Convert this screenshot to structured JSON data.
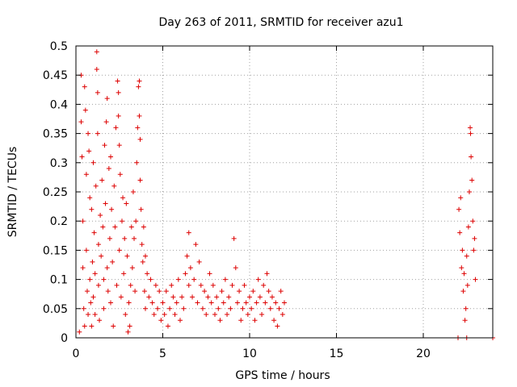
{
  "chart_data": {
    "type": "scatter",
    "title": "Day 263 of 2011, SRMTID for receiver azu1",
    "xlabel": "GPS time / hours",
    "ylabel": "SRMTID / TECUs",
    "xlim": [
      0,
      24
    ],
    "ylim": [
      0,
      0.5
    ],
    "x_ticks": [
      0,
      5,
      10,
      15,
      20
    ],
    "x_tick_labels": [
      "0",
      "5",
      "10",
      "15",
      "20"
    ],
    "y_ticks": [
      0,
      0.05,
      0.1,
      0.15,
      0.2,
      0.25,
      0.3,
      0.35,
      0.4,
      0.45,
      0.5
    ],
    "y_tick_labels": [
      "0",
      "0.05",
      "0.1",
      "0.15",
      "0.2",
      "0.25",
      "0.3",
      "0.35",
      "0.4",
      "0.45",
      "0.5"
    ],
    "grid": true,
    "marker": "+",
    "color": "#dd0000",
    "series": [
      {
        "name": "SRMTID",
        "points": [
          [
            0.2,
            0.01
          ],
          [
            0.3,
            0.45
          ],
          [
            0.3,
            0.37
          ],
          [
            0.35,
            0.31
          ],
          [
            0.4,
            0.2
          ],
          [
            0.4,
            0.12
          ],
          [
            0.45,
            0.05
          ],
          [
            0.5,
            0.02
          ],
          [
            0.5,
            0.43
          ],
          [
            0.55,
            0.39
          ],
          [
            0.6,
            0.28
          ],
          [
            0.6,
            0.15
          ],
          [
            0.65,
            0.08
          ],
          [
            0.7,
            0.04
          ],
          [
            0.7,
            0.35
          ],
          [
            0.75,
            0.32
          ],
          [
            0.8,
            0.24
          ],
          [
            0.8,
            0.1
          ],
          [
            0.85,
            0.06
          ],
          [
            0.9,
            0.02
          ],
          [
            0.9,
            0.22
          ],
          [
            0.95,
            0.13
          ],
          [
            1.0,
            0.07
          ],
          [
            1.0,
            0.3
          ],
          [
            1.05,
            0.18
          ],
          [
            1.1,
            0.11
          ],
          [
            1.1,
            0.04
          ],
          [
            1.15,
            0.26
          ],
          [
            1.2,
            0.49
          ],
          [
            1.2,
            0.46
          ],
          [
            1.25,
            0.42
          ],
          [
            1.25,
            0.35
          ],
          [
            1.3,
            0.16
          ],
          [
            1.3,
            0.09
          ],
          [
            1.35,
            0.03
          ],
          [
            1.4,
            0.21
          ],
          [
            1.45,
            0.14
          ],
          [
            1.5,
            0.27
          ],
          [
            1.55,
            0.19
          ],
          [
            1.6,
            0.1
          ],
          [
            1.6,
            0.05
          ],
          [
            1.65,
            0.33
          ],
          [
            1.7,
            0.23
          ],
          [
            1.75,
            0.37
          ],
          [
            1.8,
            0.41
          ],
          [
            1.8,
            0.12
          ],
          [
            1.85,
            0.08
          ],
          [
            1.9,
            0.29
          ],
          [
            1.95,
            0.17
          ],
          [
            2.0,
            0.06
          ],
          [
            2.0,
            0.31
          ],
          [
            2.05,
            0.22
          ],
          [
            2.1,
            0.13
          ],
          [
            2.15,
            0.02
          ],
          [
            2.2,
            0.26
          ],
          [
            2.25,
            0.19
          ],
          [
            2.3,
            0.36
          ],
          [
            2.35,
            0.09
          ],
          [
            2.4,
            0.44
          ],
          [
            2.45,
            0.42
          ],
          [
            2.45,
            0.38
          ],
          [
            2.5,
            0.33
          ],
          [
            2.5,
            0.15
          ],
          [
            2.55,
            0.28
          ],
          [
            2.6,
            0.07
          ],
          [
            2.65,
            0.2
          ],
          [
            2.7,
            0.24
          ],
          [
            2.75,
            0.11
          ],
          [
            2.8,
            0.17
          ],
          [
            2.85,
            0.04
          ],
          [
            2.9,
            0.23
          ],
          [
            2.95,
            0.14
          ],
          [
            3.0,
            0.01
          ],
          [
            3.05,
            0.06
          ],
          [
            3.1,
            0.02
          ],
          [
            3.15,
            0.09
          ],
          [
            3.2,
            0.19
          ],
          [
            3.25,
            0.12
          ],
          [
            3.3,
            0.25
          ],
          [
            3.35,
            0.17
          ],
          [
            3.4,
            0.08
          ],
          [
            3.45,
            0.2
          ],
          [
            3.5,
            0.3
          ],
          [
            3.55,
            0.36
          ],
          [
            3.6,
            0.43
          ],
          [
            3.65,
            0.44
          ],
          [
            3.65,
            0.38
          ],
          [
            3.7,
            0.34
          ],
          [
            3.7,
            0.27
          ],
          [
            3.75,
            0.22
          ],
          [
            3.8,
            0.16
          ],
          [
            3.85,
            0.13
          ],
          [
            3.9,
            0.19
          ],
          [
            3.95,
            0.08
          ],
          [
            4.0,
            0.05
          ],
          [
            4.0,
            0.14
          ],
          [
            4.1,
            0.11
          ],
          [
            4.2,
            0.07
          ],
          [
            4.3,
            0.1
          ],
          [
            4.4,
            0.06
          ],
          [
            4.5,
            0.04
          ],
          [
            4.6,
            0.09
          ],
          [
            4.7,
            0.05
          ],
          [
            4.8,
            0.08
          ],
          [
            4.9,
            0.03
          ],
          [
            5.0,
            0.06
          ],
          [
            5.1,
            0.04
          ],
          [
            5.2,
            0.08
          ],
          [
            5.3,
            0.02
          ],
          [
            5.4,
            0.05
          ],
          [
            5.5,
            0.09
          ],
          [
            5.6,
            0.07
          ],
          [
            5.7,
            0.04
          ],
          [
            5.8,
            0.06
          ],
          [
            5.9,
            0.1
          ],
          [
            6.0,
            0.03
          ],
          [
            6.1,
            0.07
          ],
          [
            6.2,
            0.05
          ],
          [
            6.3,
            0.11
          ],
          [
            6.4,
            0.14
          ],
          [
            6.5,
            0.18
          ],
          [
            6.5,
            0.09
          ],
          [
            6.6,
            0.12
          ],
          [
            6.7,
            0.07
          ],
          [
            6.8,
            0.1
          ],
          [
            6.9,
            0.16
          ],
          [
            7.0,
            0.06
          ],
          [
            7.1,
            0.13
          ],
          [
            7.2,
            0.09
          ],
          [
            7.3,
            0.05
          ],
          [
            7.4,
            0.08
          ],
          [
            7.5,
            0.04
          ],
          [
            7.6,
            0.07
          ],
          [
            7.7,
            0.11
          ],
          [
            7.8,
            0.06
          ],
          [
            7.9,
            0.09
          ],
          [
            8.0,
            0.04
          ],
          [
            8.1,
            0.07
          ],
          [
            8.2,
            0.05
          ],
          [
            8.3,
            0.03
          ],
          [
            8.4,
            0.08
          ],
          [
            8.5,
            0.06
          ],
          [
            8.6,
            0.1
          ],
          [
            8.7,
            0.04
          ],
          [
            8.8,
            0.07
          ],
          [
            8.9,
            0.05
          ],
          [
            9.0,
            0.09
          ],
          [
            9.1,
            0.17
          ],
          [
            9.2,
            0.12
          ],
          [
            9.3,
            0.06
          ],
          [
            9.4,
            0.08
          ],
          [
            9.5,
            0.03
          ],
          [
            9.6,
            0.05
          ],
          [
            9.7,
            0.09
          ],
          [
            9.8,
            0.06
          ],
          [
            9.9,
            0.04
          ],
          [
            10.0,
            0.07
          ],
          [
            10.1,
            0.05
          ],
          [
            10.2,
            0.08
          ],
          [
            10.3,
            0.03
          ],
          [
            10.4,
            0.06
          ],
          [
            10.5,
            0.1
          ],
          [
            10.6,
            0.07
          ],
          [
            10.7,
            0.04
          ],
          [
            10.8,
            0.09
          ],
          [
            10.9,
            0.06
          ],
          [
            11.0,
            0.11
          ],
          [
            11.1,
            0.08
          ],
          [
            11.2,
            0.05
          ],
          [
            11.3,
            0.07
          ],
          [
            11.4,
            0.03
          ],
          [
            11.5,
            0.06
          ],
          [
            11.6,
            0.02
          ],
          [
            11.7,
            0.05
          ],
          [
            11.8,
            0.08
          ],
          [
            11.9,
            0.04
          ],
          [
            12.0,
            0.06
          ],
          [
            22.0,
            0.0
          ],
          [
            22.05,
            0.22
          ],
          [
            22.1,
            0.18
          ],
          [
            22.15,
            0.24
          ],
          [
            22.2,
            0.12
          ],
          [
            22.25,
            0.15
          ],
          [
            22.3,
            0.08
          ],
          [
            22.35,
            0.11
          ],
          [
            22.4,
            0.03
          ],
          [
            22.45,
            0.05
          ],
          [
            22.5,
            0.0
          ],
          [
            22.5,
            0.14
          ],
          [
            22.55,
            0.09
          ],
          [
            22.6,
            0.19
          ],
          [
            22.65,
            0.25
          ],
          [
            22.7,
            0.36
          ],
          [
            22.72,
            0.35
          ],
          [
            22.75,
            0.31
          ],
          [
            22.8,
            0.27
          ],
          [
            22.85,
            0.2
          ],
          [
            22.9,
            0.15
          ],
          [
            22.95,
            0.17
          ],
          [
            23.0,
            0.1
          ],
          [
            24.0,
            0.0
          ]
        ]
      }
    ]
  }
}
